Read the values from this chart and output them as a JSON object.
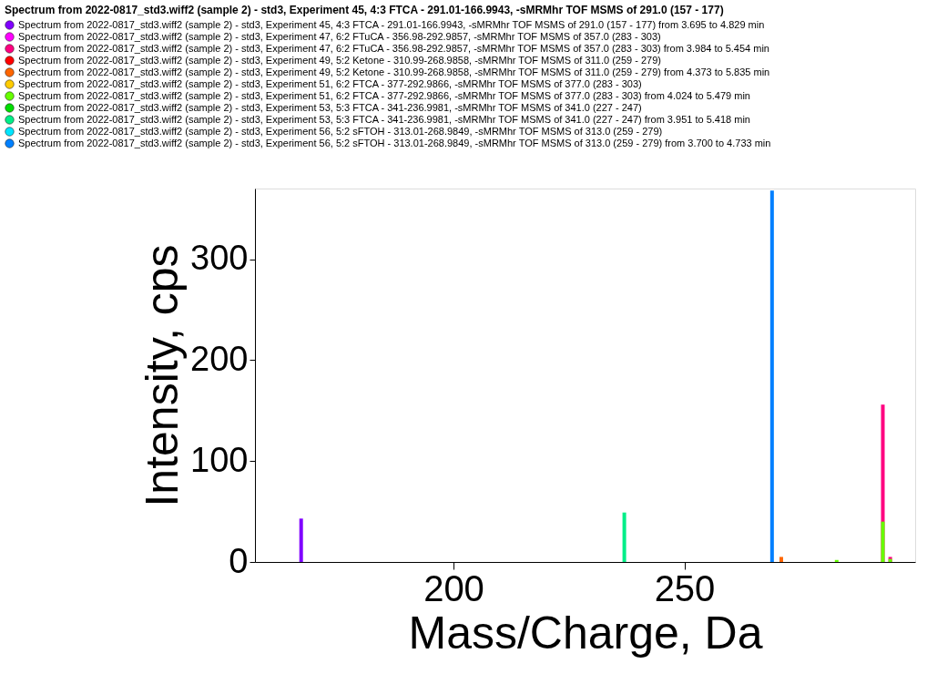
{
  "chart_data": {
    "type": "bar",
    "title": "Spectrum from 2022-0817_std3.wiff2 (sample 2) - std3, Experiment 45, 4:3 FTCA - 291.01-166.9943, -sMRMhr TOF MSMS of 291.0 (157 - 177)",
    "xlabel": "Mass/Charge, Da",
    "ylabel": "Intensity, cps",
    "xlim": [
      157,
      300
    ],
    "xticks": [
      200,
      250
    ],
    "ylim": [
      0,
      370
    ],
    "yticks": [
      0,
      100,
      200,
      300
    ],
    "grid": false,
    "legend": "top",
    "series": [
      {
        "name": "Spectrum from 2022-0817_std3.wiff2 (sample 2) - std3, Experiment 45, 4:3 FTCA - 291.01-166.9943, -sMRMhr TOF MSMS of 291.0 (157 - 177) from 3.695 to 4.829 min",
        "color": "#8000ff",
        "x": [
          167.0
        ],
        "values": [
          43
        ]
      },
      {
        "name": "Spectrum from 2022-0817_std3.wiff2 (sample 2) - std3, Experiment 47, 6:2 FTuCA - 356.98-292.9857, -sMRMhr TOF MSMS of 357.0 (283 - 303)",
        "color": "#ff00ff"
      },
      {
        "name": "Spectrum from 2022-0817_std3.wiff2 (sample 2) - std3, Experiment 47, 6:2 FTuCA - 356.98-292.9857, -sMRMhr TOF MSMS of 357.0 (283 - 303) from 3.984 to 5.454 min",
        "color": "#ff0080",
        "x": [
          293.0,
          294.6
        ],
        "values": [
          156,
          5
        ]
      },
      {
        "name": "Spectrum from 2022-0817_std3.wiff2 (sample 2) - std3, Experiment 49, 5:2 Ketone - 310.99-268.9858, -sMRMhr TOF MSMS of 311.0 (259 - 279)",
        "color": "#ff0000"
      },
      {
        "name": "Spectrum from 2022-0817_std3.wiff2 (sample 2) - std3, Experiment 49, 5:2 Ketone - 310.99-268.9858, -sMRMhr TOF MSMS of 311.0 (259 - 279) from 4.373 to 5.835 min",
        "color": "#ff6600",
        "x": [
          271.0
        ],
        "values": [
          5
        ]
      },
      {
        "name": "Spectrum from 2022-0817_std3.wiff2 (sample 2) - std3, Experiment 51, 6:2 FTCA - 377-292.9866, -sMRMhr TOF MSMS of 377.0 (283 - 303)",
        "color": "#ffcc00"
      },
      {
        "name": "Spectrum from 2022-0817_std3.wiff2 (sample 2) - std3, Experiment 51, 6:2 FTCA - 377-292.9866, -sMRMhr TOF MSMS of 377.0 (283 - 303) from 4.024 to 5.479 min",
        "color": "#66ff00",
        "x": [
          283.0,
          293.0,
          294.6
        ],
        "values": [
          2,
          40,
          3
        ]
      },
      {
        "name": "Spectrum from 2022-0817_std3.wiff2 (sample 2) - std3, Experiment 53, 5:3 FTCA - 341-236.9981, -sMRMhr TOF MSMS of 341.0 (227 - 247)",
        "color": "#00dd00"
      },
      {
        "name": "Spectrum from 2022-0817_std3.wiff2 (sample 2) - std3, Experiment 53, 5:3 FTCA - 341-236.9981, -sMRMhr TOF MSMS of 341.0 (227 - 247) from 3.951 to 5.418 min",
        "color": "#00ee88",
        "x": [
          237.0
        ],
        "values": [
          49
        ]
      },
      {
        "name": "Spectrum from 2022-0817_std3.wiff2 (sample 2) - std3, Experiment 56, 5:2 sFTOH - 313.01-268.9849, -sMRMhr TOF MSMS of 313.0 (259 - 279)",
        "color": "#00e5ff"
      },
      {
        "name": "Spectrum from 2022-0817_std3.wiff2 (sample 2) - std3, Experiment 56, 5:2 sFTOH - 313.01-268.9849, -sMRMhr TOF MSMS of 313.0 (259 - 279) from 3.700 to 4.733 min",
        "color": "#0080ff",
        "x": [
          269.0
        ],
        "values": [
          368
        ]
      }
    ]
  }
}
